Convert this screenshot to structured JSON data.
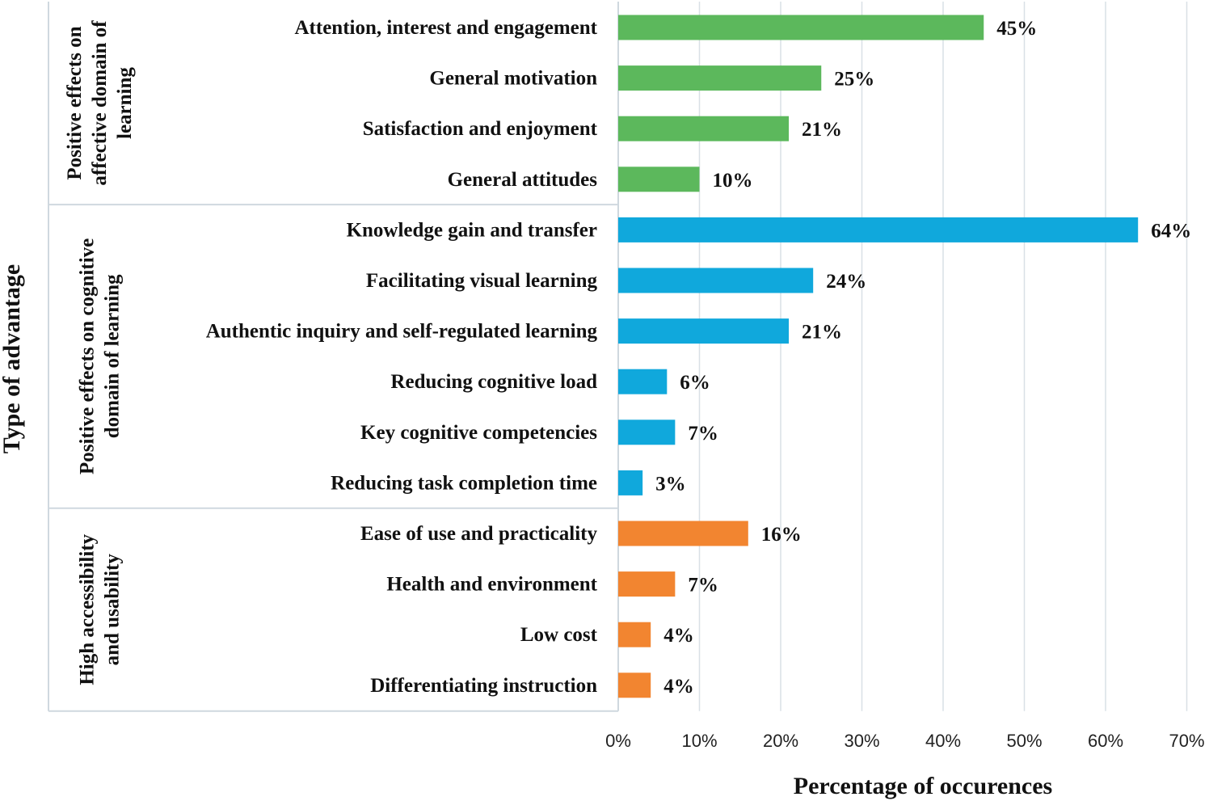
{
  "chart_data": {
    "type": "bar",
    "orientation": "horizontal",
    "xlabel": "Percentage of occurences",
    "ylabel": "Type of advantage",
    "xlim": [
      0,
      70
    ],
    "xticks": [
      "0%",
      "10%",
      "20%",
      "30%",
      "40%",
      "50%",
      "60%",
      "70%"
    ],
    "grid": true,
    "groups": [
      {
        "name": "Positive effects on affective domain of learning",
        "name_lines": [
          "Positive effects on",
          "affective domain of",
          "learning"
        ],
        "color": "#5cb85c",
        "categories": [
          "Attention, interest and engagement",
          "General motivation",
          "Satisfaction and enjoyment",
          "General attitudes"
        ],
        "values": [
          45,
          25,
          21,
          10
        ],
        "labels": [
          "45%",
          "25%",
          "21%",
          "10%"
        ]
      },
      {
        "name": "Positive effects on cognitive domain of learning",
        "name_lines": [
          "Positive effects on cognitive",
          "domain of learning"
        ],
        "color": "#10a8dc",
        "categories": [
          "Knowledge gain and transfer",
          "Facilitating visual learning",
          "Authentic inquiry and self-regulated learning",
          "Reducing cognitive load",
          "Key cognitive competencies",
          "Reducing task completion time"
        ],
        "values": [
          64,
          24,
          21,
          6,
          7,
          3
        ],
        "labels": [
          "64%",
          "24%",
          "21%",
          "6%",
          "7%",
          "3%"
        ]
      },
      {
        "name": "High accessibility and usability",
        "name_lines": [
          "High  accessibility",
          "and usability"
        ],
        "color": "#f28530",
        "categories": [
          "Ease of use and practicality",
          "Health and environment",
          "Low cost",
          "Differentiating instruction"
        ],
        "values": [
          16,
          7,
          4,
          4
        ],
        "labels": [
          "16%",
          "7%",
          "4%",
          "4%"
        ]
      }
    ]
  }
}
